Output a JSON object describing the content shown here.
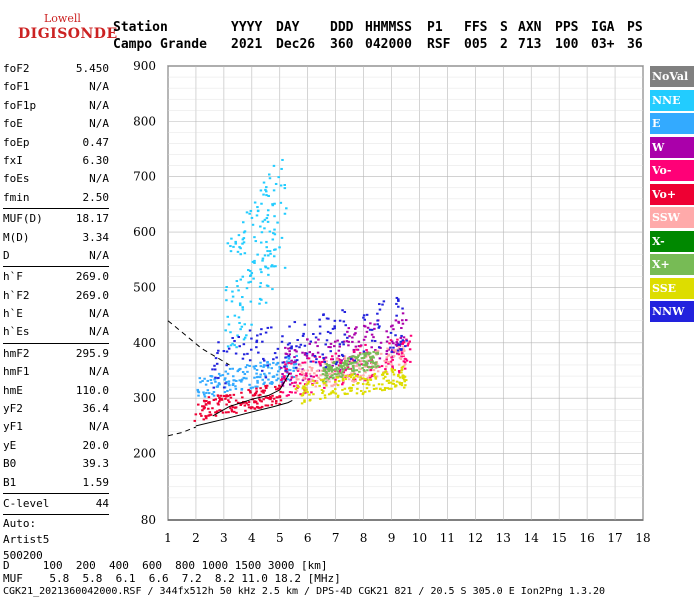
{
  "logo": {
    "top": "Lowell",
    "main": "DIGISONDE"
  },
  "header": {
    "labels": [
      "Station",
      "YYYY",
      "DAY",
      "DDD",
      "HHMMSS",
      "P1",
      "FFS",
      "S",
      "AXN",
      "PPS",
      "IGA",
      "PS"
    ],
    "values": [
      "Campo Grande",
      "2021",
      "Dec26",
      "360",
      "042000",
      "RSF",
      "005",
      "2",
      "713",
      "100",
      "03+",
      "36"
    ]
  },
  "params1": [
    {
      "k": "foF2",
      "v": "5.450"
    },
    {
      "k": "foF1",
      "v": "N/A"
    },
    {
      "k": "foF1p",
      "v": "N/A"
    },
    {
      "k": "foE",
      "v": "N/A"
    },
    {
      "k": "foEp",
      "v": "0.47"
    },
    {
      "k": "fxI",
      "v": "6.30"
    },
    {
      "k": "foEs",
      "v": "N/A"
    },
    {
      "k": "fmin",
      "v": "2.50"
    }
  ],
  "params2": [
    {
      "k": "MUF(D)",
      "v": "18.17"
    },
    {
      "k": "M(D)",
      "v": "3.34"
    },
    {
      "k": "D",
      "v": "N/A"
    }
  ],
  "params3": [
    {
      "k": "h`F",
      "v": "269.0"
    },
    {
      "k": "h`F2",
      "v": "269.0"
    },
    {
      "k": "h`E",
      "v": "N/A"
    },
    {
      "k": "h`Es",
      "v": "N/A"
    }
  ],
  "params4": [
    {
      "k": "hmF2",
      "v": "295.9"
    },
    {
      "k": "hmF1",
      "v": "N/A"
    },
    {
      "k": "hmE",
      "v": "110.0"
    },
    {
      "k": "yF2",
      "v": "36.4"
    },
    {
      "k": "yF1",
      "v": "N/A"
    },
    {
      "k": "yE",
      "v": "20.0"
    },
    {
      "k": "B0",
      "v": "39.3"
    },
    {
      "k": "B1",
      "v": "1.59"
    }
  ],
  "clevel": {
    "k": "C-level",
    "v": "44"
  },
  "autoscaling": [
    "Auto:",
    "Artist5",
    "500200"
  ],
  "legend": [
    {
      "label": "NoVal",
      "color": "#808080"
    },
    {
      "label": "NNE",
      "color": "#22ccff"
    },
    {
      "label": "E",
      "color": "#33aaff"
    },
    {
      "label": "W",
      "color": "#aa00aa"
    },
    {
      "label": "Vo-",
      "color": "#ff0077"
    },
    {
      "label": "Vo+",
      "color": "#ee0033"
    },
    {
      "label": "SSW",
      "color": "#ffaaaa"
    },
    {
      "label": "X-",
      "color": "#008800"
    },
    {
      "label": "X+",
      "color": "#77bb55"
    },
    {
      "label": "SSE",
      "color": "#dddd00"
    },
    {
      "label": "NNW",
      "color": "#2222dd"
    }
  ],
  "footer": {
    "d_row": "D     100  200  400  600  800 1000 1500 3000 [km]",
    "muf_row": "MUF    5.8  5.8  6.1  6.6  7.2  8.2 11.0 18.2 [MHz]",
    "info": "CGK21_2021360042000.RSF / 344fx512h 50 kHz 2.5 km / DPS-4D CGK21 821 / 20.5 S 305.0 E Ion2Png 1.3.20"
  },
  "chart_data": {
    "type": "scatter",
    "xlim": [
      1,
      18
    ],
    "ylim": [
      80,
      900
    ],
    "x_ticks": [
      1,
      2,
      3,
      4,
      5,
      6,
      7,
      8,
      9,
      10,
      11,
      12,
      13,
      14,
      15,
      16,
      17,
      18
    ],
    "y_ticks": [
      80,
      200,
      300,
      400,
      500,
      600,
      700,
      800,
      900
    ],
    "grid": true,
    "series": [
      {
        "color": "#22ccff",
        "region": [
          [
            3.0,
            5.2
          ],
          [
            350,
            760
          ]
        ]
      },
      {
        "color": "#33aaff",
        "region": [
          [
            2.0,
            5.6
          ],
          [
            300,
            380
          ]
        ]
      },
      {
        "color": "#aa00aa",
        "region": [
          [
            5.0,
            9.5
          ],
          [
            320,
            460
          ]
        ]
      },
      {
        "color": "#ff0077",
        "region": [
          [
            5.0,
            9.8
          ],
          [
            300,
            420
          ]
        ]
      },
      {
        "color": "#ee0033",
        "region": [
          [
            1.9,
            5.0
          ],
          [
            260,
            330
          ]
        ]
      },
      {
        "color": "#ffaaaa",
        "region": [
          [
            5.5,
            9.5
          ],
          [
            310,
            400
          ]
        ]
      },
      {
        "color": "#77bb55",
        "region": [
          [
            6.5,
            8.5
          ],
          [
            330,
            390
          ]
        ]
      },
      {
        "color": "#dddd00",
        "region": [
          [
            5.5,
            9.5
          ],
          [
            290,
            360
          ]
        ]
      },
      {
        "color": "#2222dd",
        "region": [
          [
            2.5,
            9.5
          ],
          [
            310,
            490
          ]
        ]
      }
    ],
    "profile_solid": [
      [
        2.0,
        250
      ],
      [
        3.0,
        262
      ],
      [
        4.0,
        275
      ],
      [
        4.8,
        285
      ],
      [
        5.3,
        292
      ],
      [
        5.45,
        296
      ]
    ],
    "trace_solid": [
      [
        2.6,
        268
      ],
      [
        3.2,
        285
      ],
      [
        4.0,
        298
      ],
      [
        4.6,
        305
      ],
      [
        5.0,
        315
      ],
      [
        5.35,
        345
      ]
    ],
    "profile_dashed_low": [
      [
        1.0,
        232
      ],
      [
        1.5,
        238
      ],
      [
        2.0,
        248
      ]
    ],
    "profile_dashed_high": [
      [
        1.0,
        440
      ],
      [
        1.6,
        415
      ],
      [
        2.2,
        390
      ],
      [
        2.8,
        372
      ],
      [
        3.2,
        360
      ]
    ]
  }
}
